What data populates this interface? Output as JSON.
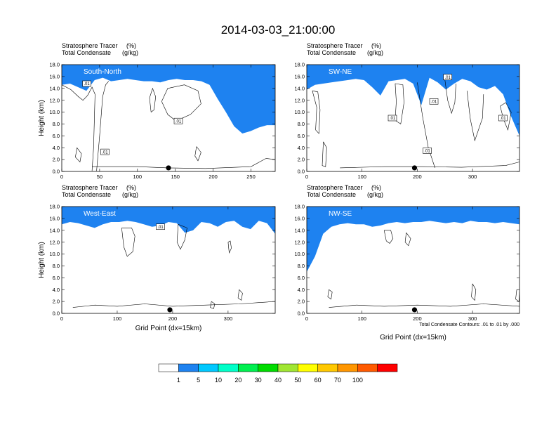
{
  "title": "2014-03-03_21:00:00",
  "chart_data": [
    {
      "type": "heatmap",
      "region_label": "South-North",
      "subtitle_lines": [
        {
          "text": "Stratosphere Tracer",
          "unit": "(%)"
        },
        {
          "text": "Total Condensate",
          "unit": "(g/kg)"
        }
      ],
      "ylabel": "Height (km)",
      "xlabel": "",
      "xlim": [
        0,
        282
      ],
      "ylim": [
        0,
        18
      ],
      "x_ticks": [
        0,
        50,
        100,
        150,
        200,
        250
      ],
      "y_ticks": [
        "0.0",
        "2.0",
        "4.0",
        "6.0",
        "8.0",
        "10.0",
        "12.0",
        "14.0",
        "16.0",
        "18.0"
      ],
      "marker_x": 141,
      "contour_labels": [
        {
          "text": ".01",
          "x": 33,
          "y": 14.8
        },
        {
          "text": ".01",
          "x": 154,
          "y": 8.5
        },
        {
          "text": ".01",
          "x": 57,
          "y": 3.3
        }
      ],
      "tracer_top_km": [
        14.6,
        14.8,
        14.2,
        13.6,
        15.4,
        15.8,
        15.2,
        15.4,
        15.6,
        15.4,
        15.2,
        15.2,
        15.0,
        15.4,
        15.6,
        15.4,
        15.4,
        15.2,
        14.6,
        12.2,
        10.0,
        7.6,
        6.4,
        6.8,
        7.4,
        7.8,
        7.8
      ],
      "note": ""
    },
    {
      "type": "heatmap",
      "region_label": "SW-NE",
      "subtitle_lines": [
        {
          "text": "Stratosphere Tracer",
          "unit": "(%)"
        },
        {
          "text": "Total Condensate",
          "unit": "(g/kg)"
        }
      ],
      "ylabel": "",
      "xlabel": "",
      "xlim": [
        0,
        385
      ],
      "ylim": [
        0,
        18
      ],
      "x_ticks": [
        0,
        100,
        200,
        300
      ],
      "y_ticks": [
        "0.0",
        "2.0",
        "4.0",
        "6.0",
        "8.0",
        "10.0",
        "12.0",
        "14.0",
        "16.0",
        "18.0"
      ],
      "marker_x": 195,
      "contour_labels": [
        {
          "text": ".01",
          "x": 255,
          "y": 15.9
        },
        {
          "text": ".01",
          "x": 230,
          "y": 11.8
        },
        {
          "text": ".01",
          "x": 155,
          "y": 9.0
        },
        {
          "text": ".01",
          "x": 218,
          "y": 3.5
        },
        {
          "text": ".01",
          "x": 355,
          "y": 9.0
        }
      ],
      "tracer_top_km": [
        13.8,
        14.6,
        14.8,
        15.0,
        15.2,
        15.4,
        15.6,
        15.4,
        14.2,
        12.8,
        15.2,
        15.4,
        15.6,
        14.8,
        11.2,
        15.8,
        15.0,
        13.8,
        14.8,
        15.6,
        15.2,
        14.2,
        13.8,
        14.4,
        13.0,
        9.2,
        6.0
      ],
      "note": ""
    },
    {
      "type": "heatmap",
      "region_label": "West-East",
      "subtitle_lines": [
        {
          "text": "Stratosphere Tracer",
          "unit": "(%)"
        },
        {
          "text": "Total Condensate",
          "unit": "(g/kg)"
        }
      ],
      "ylabel": "Height (km)",
      "xlabel": "Grid Point (dx=15km)",
      "xlim": [
        0,
        385
      ],
      "ylim": [
        0,
        18
      ],
      "x_ticks": [
        0,
        100,
        200,
        300
      ],
      "y_ticks": [
        "0.0",
        "2.0",
        "4.0",
        "6.0",
        "8.0",
        "10.0",
        "12.0",
        "14.0",
        "16.0",
        "18.0"
      ],
      "marker_x": 195,
      "contour_labels": [
        {
          "text": ".01",
          "x": 178,
          "y": 14.6
        }
      ],
      "tracer_top_km": [
        15.0,
        15.4,
        15.2,
        14.8,
        14.4,
        15.0,
        15.4,
        15.4,
        15.6,
        15.4,
        15.0,
        14.6,
        14.8,
        15.4,
        15.2,
        13.6,
        14.0,
        15.4,
        15.2,
        14.6,
        15.4,
        15.6,
        14.6,
        14.2,
        15.6,
        15.2,
        13.4
      ],
      "note": ""
    },
    {
      "type": "heatmap",
      "region_label": "NW-SE",
      "subtitle_lines": [
        {
          "text": "Stratosphere Tracer",
          "unit": "(%)"
        },
        {
          "text": "Total Condensate",
          "unit": "(g/kg)"
        }
      ],
      "ylabel": "",
      "xlabel": "Grid Point (dx=15km)",
      "xlim": [
        0,
        385
      ],
      "ylim": [
        0,
        18
      ],
      "x_ticks": [
        0,
        100,
        200,
        300
      ],
      "y_ticks": [
        "0.0",
        "2.0",
        "4.0",
        "6.0",
        "8.0",
        "10.0",
        "12.0",
        "14.0",
        "16.0",
        "18.0"
      ],
      "marker_x": 195,
      "contour_labels": [],
      "tracer_top_km": [
        7.0,
        9.6,
        13.4,
        14.6,
        15.0,
        15.2,
        15.0,
        15.0,
        14.6,
        14.8,
        15.2,
        15.4,
        15.2,
        15.4,
        15.4,
        15.6,
        15.4,
        15.2,
        15.4,
        15.2,
        15.6,
        15.4,
        15.4,
        15.2,
        15.4,
        15.2,
        15.0
      ],
      "note": "Total Condensate Contours: .01 to .01 by .000"
    }
  ],
  "colorbar": {
    "colors": [
      "#ffffff",
      "#1e82f0",
      "#00c8ff",
      "#00ffc8",
      "#00f050",
      "#00dc00",
      "#a0e632",
      "#ffff00",
      "#ffc800",
      "#ff9600",
      "#ff5a00",
      "#ff0000"
    ],
    "labels": [
      "1",
      "5",
      "10",
      "20",
      "30",
      "40",
      "50",
      "60",
      "70",
      "100"
    ]
  }
}
